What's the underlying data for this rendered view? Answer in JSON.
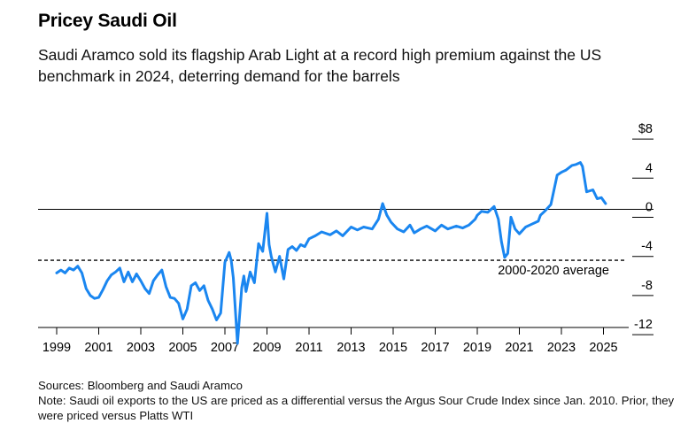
{
  "chart_data": {
    "type": "line",
    "title": "Pricey Saudi Oil",
    "subtitle": "Saudi Aramco sold its flagship Arab Light at a record high premium against the US benchmark in 2024, deterring demand for the barrels",
    "xlabel": "",
    "ylabel": "",
    "xlim": [
      1998.5,
      2026
    ],
    "ylim": [
      -13.5,
      8.5
    ],
    "x_ticks": [
      1999,
      2001,
      2003,
      2005,
      2007,
      2009,
      2011,
      2013,
      2015,
      2017,
      2019,
      2021,
      2023,
      2025
    ],
    "y_ticks": [
      8,
      4,
      0,
      -4,
      -8,
      -12
    ],
    "y_tick_labels": [
      "$8",
      "4",
      "0",
      "-4",
      "-8",
      "-12"
    ],
    "average": {
      "value": -3.4,
      "label": "2000-2020 average"
    },
    "line_color": "#1a86f0",
    "grid": false,
    "series": [
      {
        "x": [
          1999.0,
          1999.2,
          1999.4,
          1999.6,
          1999.8,
          2000.0,
          2000.2,
          2000.4,
          2000.6,
          2000.8,
          2001.0,
          2001.2,
          2001.4,
          2001.6,
          2001.8,
          2002.0,
          2002.2,
          2002.4,
          2002.6,
          2002.8,
          2003.0,
          2003.2,
          2003.4,
          2003.6,
          2003.8,
          2004.0,
          2004.2,
          2004.4,
          2004.6,
          2004.8,
          2005.0,
          2005.2,
          2005.4,
          2005.6,
          2005.8,
          2006.0,
          2006.2,
          2006.4,
          2006.6,
          2006.8,
          2007.0,
          2007.2,
          2007.3,
          2007.4,
          2007.6,
          2007.8,
          2007.9,
          2008.0,
          2008.2,
          2008.4,
          2008.6,
          2008.8,
          2009.0,
          2009.1,
          2009.2,
          2009.4,
          2009.6,
          2009.8,
          2010.0,
          2010.2,
          2010.4,
          2010.6,
          2010.8,
          2011.0,
          2011.3,
          2011.6,
          2012.0,
          2012.3,
          2012.6,
          2013.0,
          2013.3,
          2013.6,
          2014.0,
          2014.3,
          2014.5,
          2014.7,
          2014.9,
          2015.2,
          2015.5,
          2015.8,
          2016.0,
          2016.3,
          2016.6,
          2017.0,
          2017.3,
          2017.6,
          2018.0,
          2018.3,
          2018.6,
          2018.9,
          2019.0,
          2019.2,
          2019.5,
          2019.8,
          2020.0,
          2020.15,
          2020.3,
          2020.45,
          2020.6,
          2020.8,
          2021.0,
          2021.3,
          2021.6,
          2021.9,
          2022.0,
          2022.2,
          2022.5,
          2022.8,
          2023.0,
          2023.2,
          2023.5,
          2023.7,
          2023.9,
          2024.0,
          2024.2,
          2024.5,
          2024.7,
          2024.9,
          2025.1
        ],
        "values": [
          -4.7,
          -4.4,
          -4.7,
          -4.2,
          -4.4,
          -4.0,
          -4.7,
          -6.3,
          -7.0,
          -7.3,
          -7.2,
          -6.4,
          -5.5,
          -4.9,
          -4.6,
          -4.2,
          -5.6,
          -4.6,
          -5.6,
          -4.8,
          -5.5,
          -6.3,
          -6.8,
          -5.5,
          -4.9,
          -4.4,
          -6.1,
          -7.2,
          -7.3,
          -7.8,
          -9.4,
          -8.4,
          -6.0,
          -5.7,
          -6.5,
          -6.0,
          -7.5,
          -8.4,
          -9.5,
          -8.8,
          -3.6,
          -2.6,
          -3.4,
          -5.2,
          -11.9,
          -6.2,
          -5.0,
          -6.6,
          -4.6,
          -5.7,
          -1.7,
          -2.5,
          1.4,
          -1.8,
          -3.0,
          -4.6,
          -3.0,
          -5.3,
          -2.3,
          -2.0,
          -2.4,
          -1.8,
          -2.0,
          -1.2,
          -0.9,
          -0.5,
          -0.8,
          -0.4,
          -0.9,
          0.0,
          -0.3,
          0.0,
          -0.2,
          0.8,
          2.4,
          1.2,
          0.5,
          -0.2,
          -0.5,
          0.2,
          -0.6,
          -0.2,
          0.1,
          -0.4,
          0.2,
          -0.2,
          0.1,
          -0.1,
          0.2,
          0.8,
          1.2,
          1.6,
          1.5,
          2.1,
          0.8,
          -1.5,
          -3.1,
          -2.7,
          1.0,
          -0.2,
          -0.7,
          0.0,
          0.3,
          0.6,
          1.2,
          1.6,
          2.3,
          5.3,
          5.6,
          5.8,
          6.3,
          6.4,
          6.6,
          6.2,
          3.6,
          3.8,
          2.9,
          3.0,
          2.4
        ]
      }
    ]
  },
  "sources": "Sources: Bloomberg and Saudi Aramco",
  "note": "Note: Saudi oil exports to the US are priced as a differential versus the Argus Sour Crude Index since Jan. 2010. Prior, they were priced versus Platts WTI"
}
